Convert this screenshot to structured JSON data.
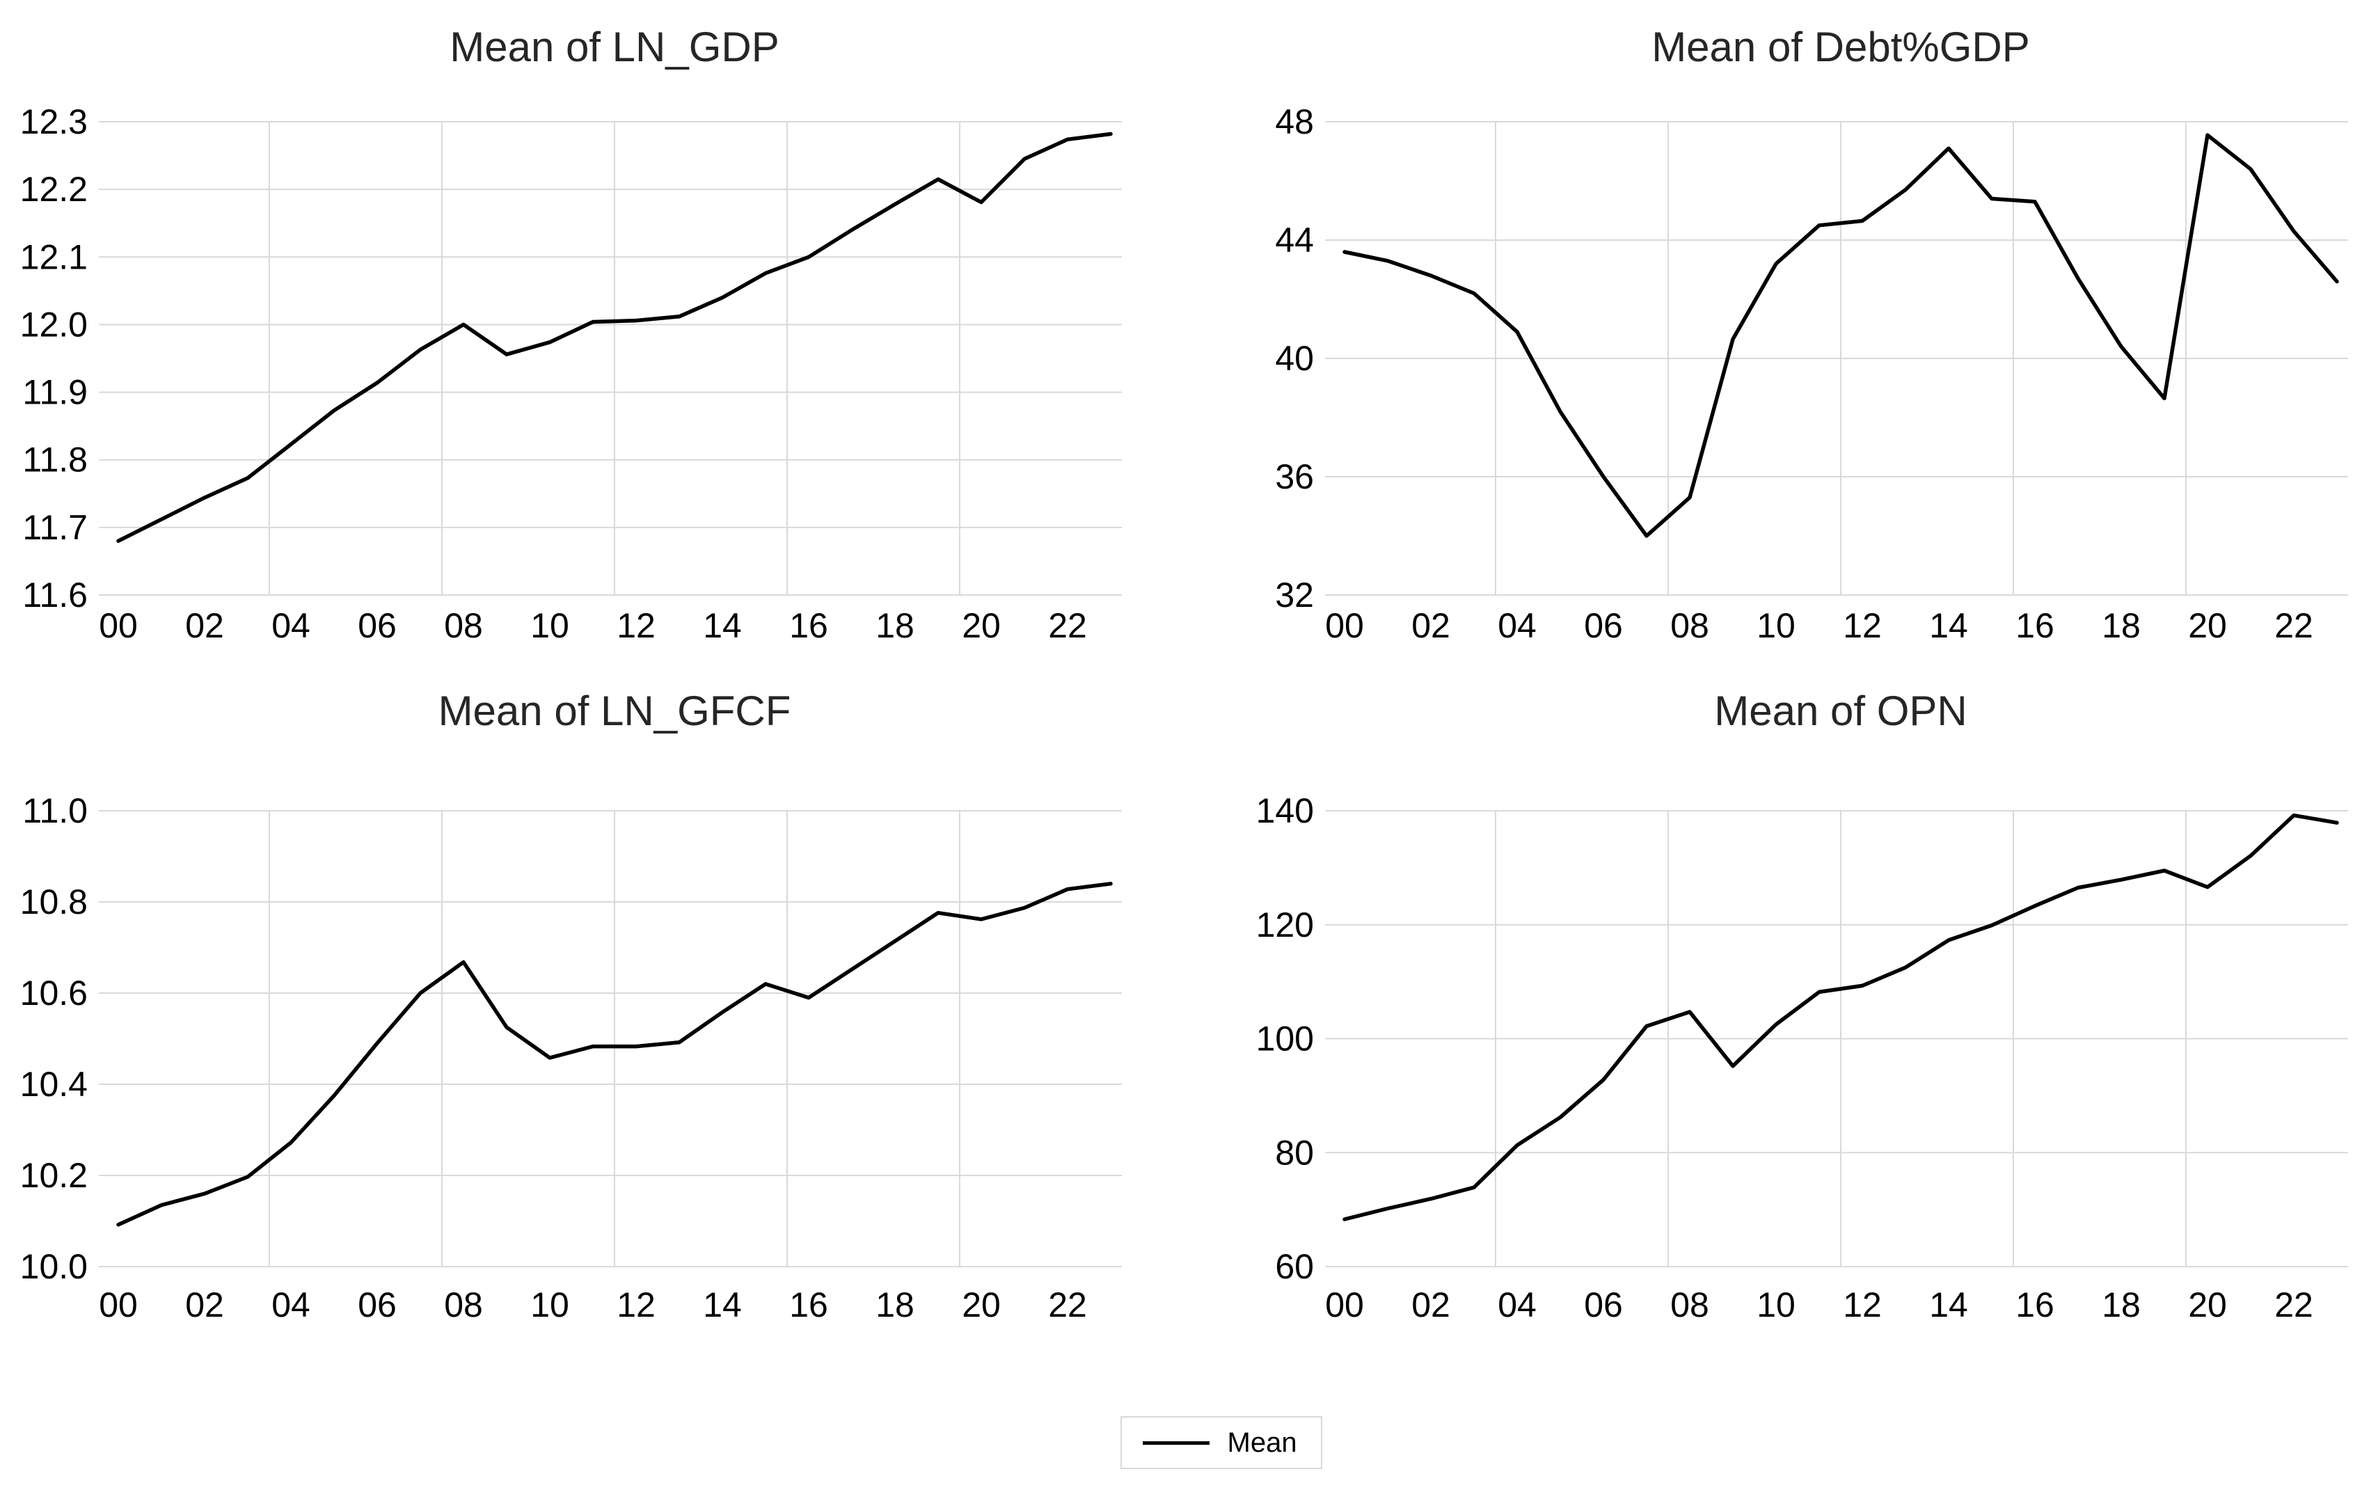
{
  "page": {
    "background": "#ffffff"
  },
  "colors": {
    "series_line": "#000000",
    "gridline": "#d9d9d9",
    "tick_text": "#000000",
    "title_text": "#262626",
    "legend_border": "#d9d9d9"
  },
  "legend": {
    "label": "Mean"
  },
  "chart_data": [
    {
      "type": "line",
      "title": "Mean of LN_GDP",
      "xlabel": "",
      "ylabel": "",
      "x_years": [
        2000,
        2001,
        2002,
        2003,
        2004,
        2005,
        2006,
        2007,
        2008,
        2009,
        2010,
        2011,
        2012,
        2013,
        2014,
        2015,
        2016,
        2017,
        2018,
        2019,
        2020,
        2021,
        2022,
        2023
      ],
      "xtick_labels": [
        "00",
        "02",
        "04",
        "06",
        "08",
        "10",
        "12",
        "14",
        "16",
        "18",
        "20",
        "22"
      ],
      "ylim": [
        11.6,
        12.3
      ],
      "yticks": [
        11.6,
        11.7,
        11.8,
        11.9,
        12.0,
        12.1,
        12.2,
        12.3
      ],
      "ytick_labels": [
        "11.6",
        "11.7",
        "11.8",
        "11.9",
        "12.0",
        "12.1",
        "12.2",
        "12.3"
      ],
      "grid": true,
      "legend_position": "shared-bottom",
      "series": [
        {
          "name": "Mean",
          "values": [
            11.68,
            11.712,
            11.744,
            11.773,
            11.823,
            11.873,
            11.914,
            11.963,
            12.0,
            11.956,
            11.974,
            12.004,
            12.006,
            12.012,
            12.04,
            12.076,
            12.1,
            12.14,
            12.178,
            12.215,
            12.181,
            12.245,
            12.274,
            12.282
          ]
        }
      ]
    },
    {
      "type": "line",
      "title": "Mean of Debt%GDP",
      "xlabel": "",
      "ylabel": "",
      "x_years": [
        2000,
        2001,
        2002,
        2003,
        2004,
        2005,
        2006,
        2007,
        2008,
        2009,
        2010,
        2011,
        2012,
        2013,
        2014,
        2015,
        2016,
        2017,
        2018,
        2019,
        2020,
        2021,
        2022,
        2023
      ],
      "xtick_labels": [
        "00",
        "02",
        "04",
        "06",
        "08",
        "10",
        "12",
        "14",
        "16",
        "18",
        "20",
        "22"
      ],
      "ylim": [
        32,
        48
      ],
      "yticks": [
        32,
        36,
        40,
        44,
        48
      ],
      "ytick_labels": [
        "32",
        "36",
        "40",
        "44",
        "48"
      ],
      "grid": true,
      "legend_position": "shared-bottom",
      "series": [
        {
          "name": "Mean",
          "values": [
            43.6,
            43.3,
            42.8,
            42.2,
            40.9,
            38.2,
            36.0,
            34.0,
            35.3,
            40.65,
            43.2,
            44.5,
            44.65,
            45.7,
            47.1,
            45.4,
            45.3,
            42.7,
            40.4,
            38.65,
            47.55,
            46.4,
            44.3,
            42.6
          ]
        }
      ]
    },
    {
      "type": "line",
      "title": "Mean of LN_GFCF",
      "xlabel": "",
      "ylabel": "",
      "x_years": [
        2000,
        2001,
        2002,
        2003,
        2004,
        2005,
        2006,
        2007,
        2008,
        2009,
        2010,
        2011,
        2012,
        2013,
        2014,
        2015,
        2016,
        2017,
        2018,
        2019,
        2020,
        2021,
        2022,
        2023
      ],
      "xtick_labels": [
        "00",
        "02",
        "04",
        "06",
        "08",
        "10",
        "12",
        "14",
        "16",
        "18",
        "20",
        "22"
      ],
      "ylim": [
        10.0,
        11.0
      ],
      "yticks": [
        10.0,
        10.2,
        10.4,
        10.6,
        10.8,
        11.0
      ],
      "ytick_labels": [
        "10.0",
        "10.2",
        "10.4",
        "10.6",
        "10.8",
        "11.0"
      ],
      "grid": true,
      "legend_position": "shared-bottom",
      "series": [
        {
          "name": "Mean",
          "values": [
            10.092,
            10.135,
            10.16,
            10.197,
            10.272,
            10.375,
            10.49,
            10.6,
            10.668,
            10.525,
            10.458,
            10.483,
            10.483,
            10.492,
            10.558,
            10.62,
            10.59,
            10.652,
            10.714,
            10.776,
            10.762,
            10.787,
            10.828,
            10.84
          ]
        }
      ]
    },
    {
      "type": "line",
      "title": "Mean of OPN",
      "xlabel": "",
      "ylabel": "",
      "x_years": [
        2000,
        2001,
        2002,
        2003,
        2004,
        2005,
        2006,
        2007,
        2008,
        2009,
        2010,
        2011,
        2012,
        2013,
        2014,
        2015,
        2016,
        2017,
        2018,
        2019,
        2020,
        2021,
        2022,
        2023
      ],
      "xtick_labels": [
        "00",
        "02",
        "04",
        "06",
        "08",
        "10",
        "12",
        "14",
        "16",
        "18",
        "20",
        "22"
      ],
      "ylim": [
        60,
        140
      ],
      "yticks": [
        60,
        80,
        100,
        120,
        140
      ],
      "ytick_labels": [
        "60",
        "80",
        "100",
        "120",
        "140"
      ],
      "grid": true,
      "legend_position": "shared-bottom",
      "series": [
        {
          "name": "Mean",
          "values": [
            68.3,
            70.2,
            71.9,
            73.9,
            81.3,
            86.2,
            92.8,
            102.2,
            104.7,
            95.2,
            102.5,
            108.2,
            109.3,
            112.5,
            117.3,
            119.9,
            123.3,
            126.5,
            127.9,
            129.5,
            126.6,
            132.1,
            139.2,
            137.9
          ]
        }
      ]
    }
  ]
}
